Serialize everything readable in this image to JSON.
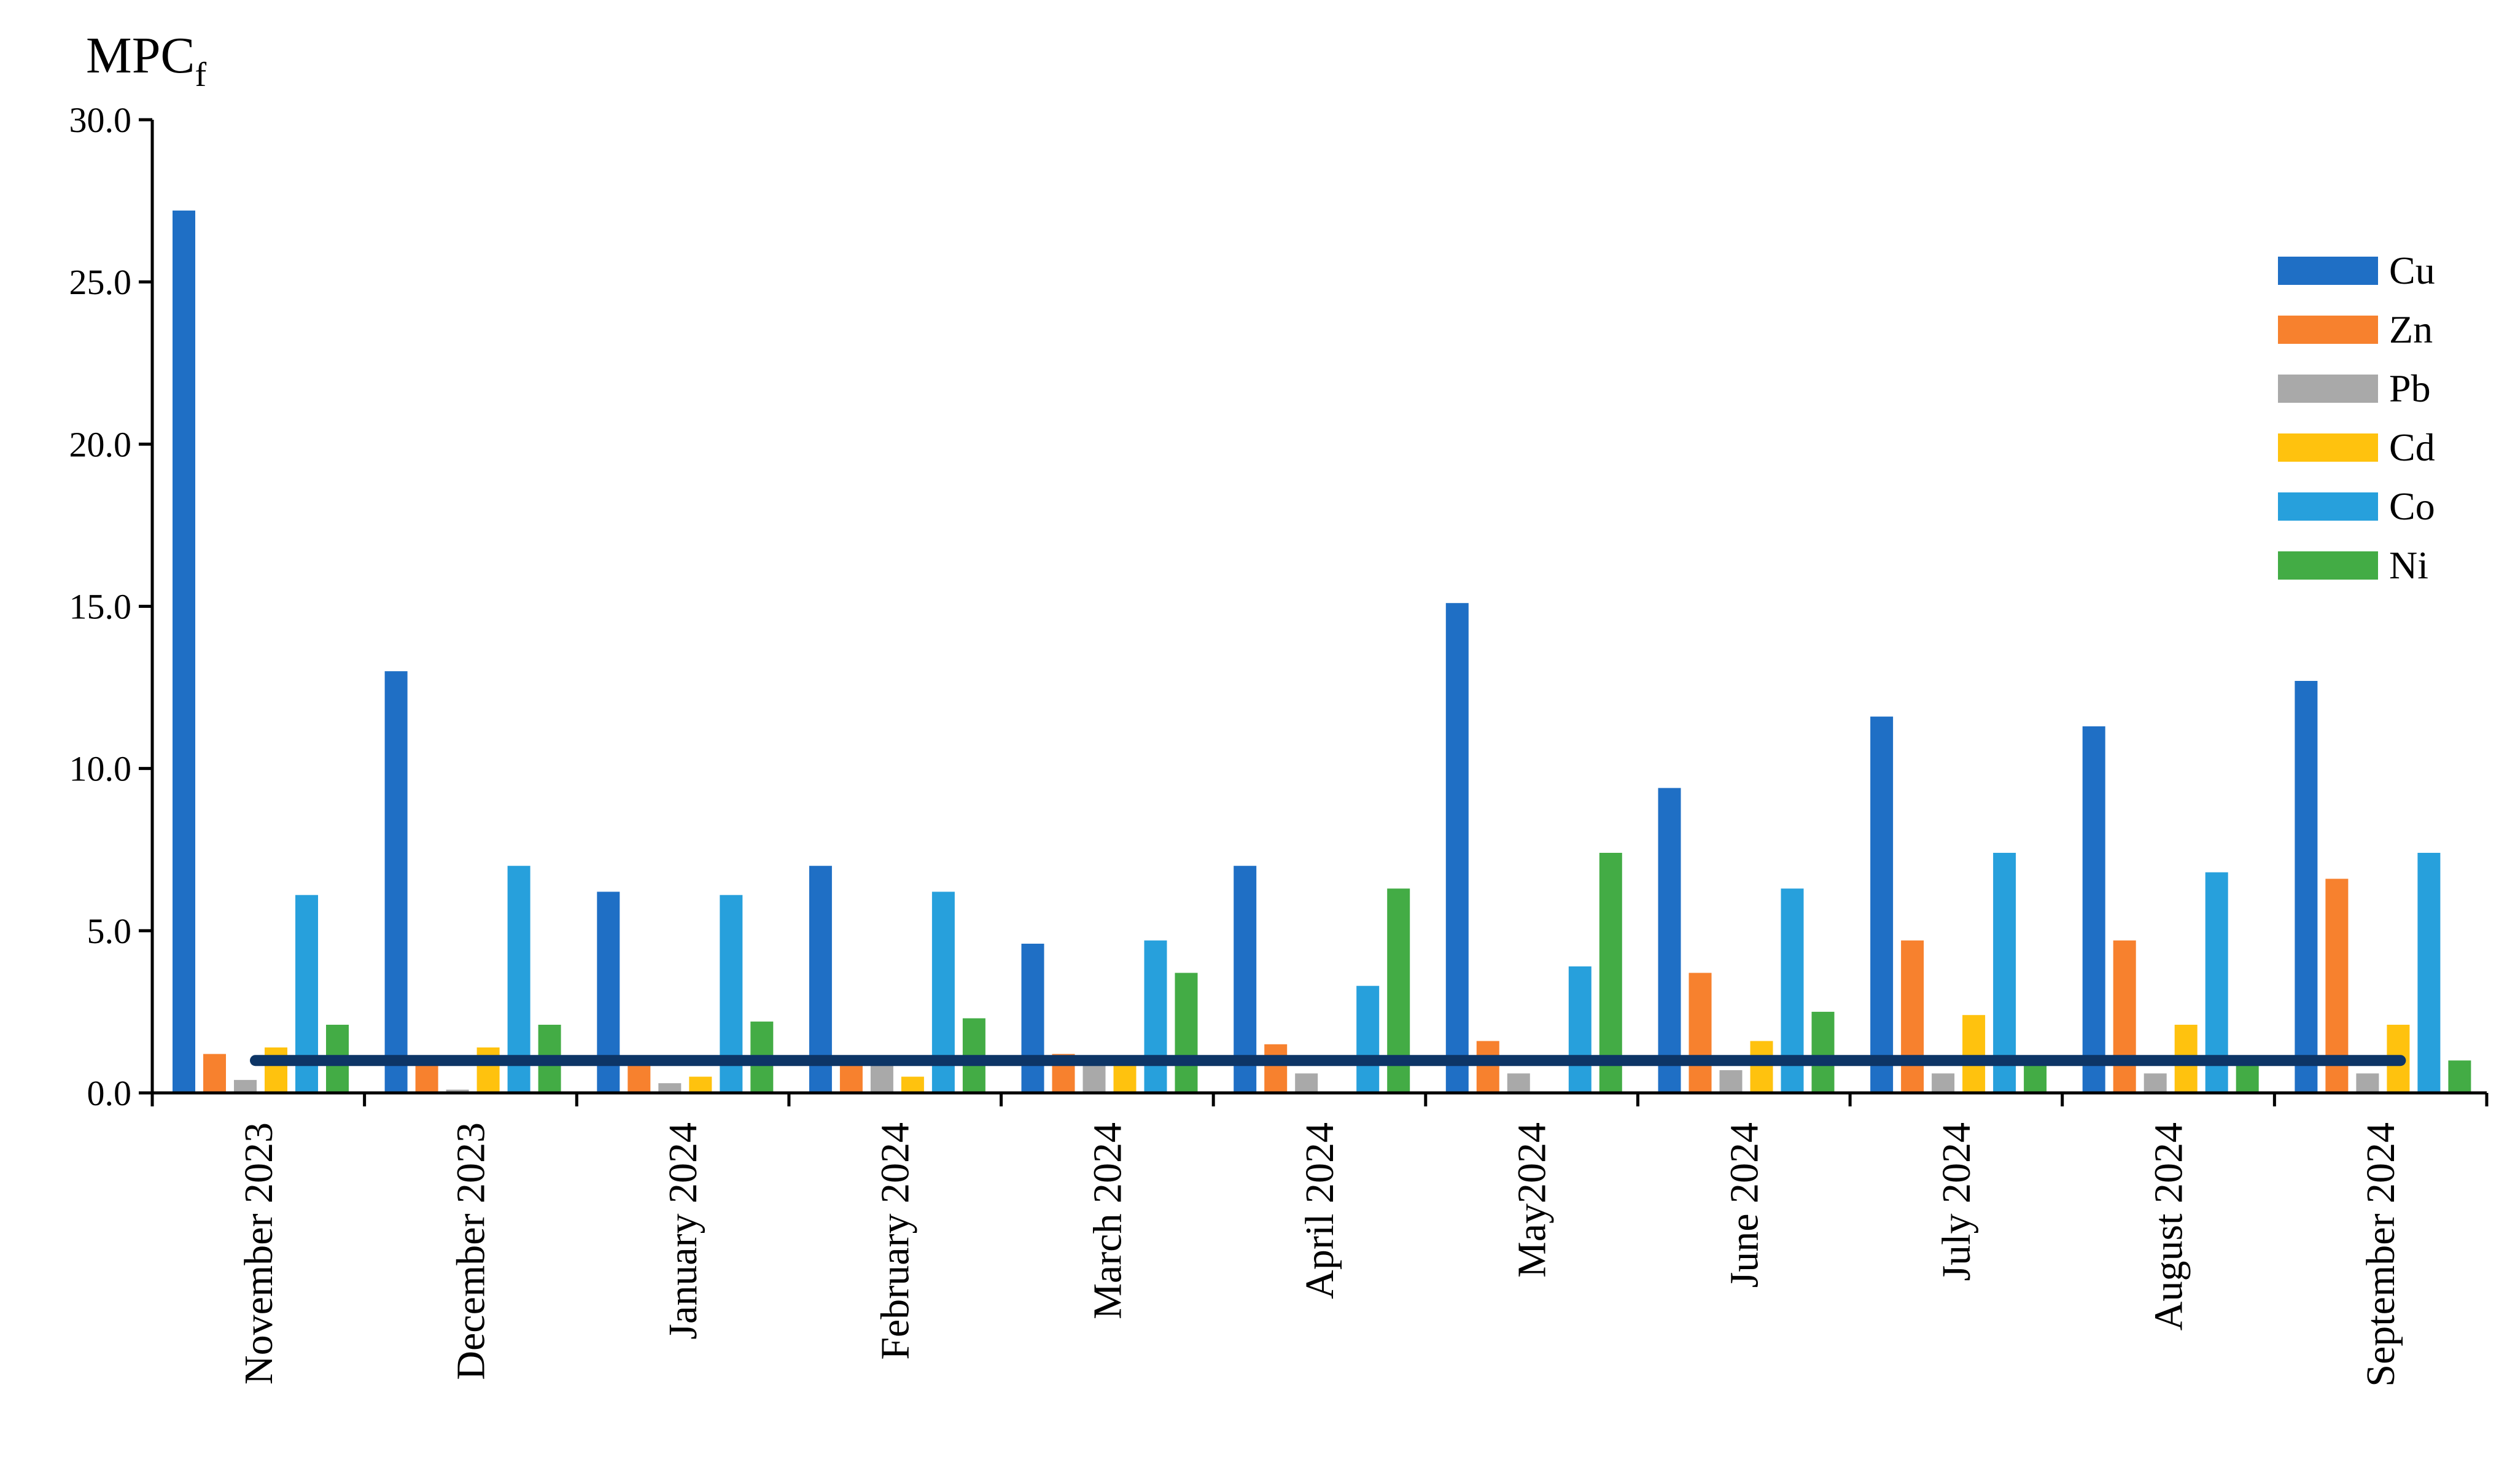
{
  "chart_data": {
    "type": "bar",
    "ylabel": "MPC",
    "ylabel_subscript": "f",
    "title": "",
    "xlabel": "",
    "ylim": [
      0,
      30
    ],
    "yticks": [
      0,
      5,
      10,
      15,
      20,
      25,
      30
    ],
    "ytick_labels": [
      "0.0",
      "5.0",
      "10.0",
      "15.0",
      "20.0",
      "25.0",
      "30.0"
    ],
    "categories": [
      "November 2023",
      "December 2023",
      "January 2024",
      "February 2024",
      "March 2024",
      "April 2024",
      "May2024",
      "June 2024",
      "July 2024",
      "August 2024",
      "September 2024"
    ],
    "series": [
      {
        "name": "Cu",
        "color": "#1f6fc5",
        "values": [
          27.2,
          13.0,
          6.2,
          7.0,
          4.6,
          7.0,
          15.1,
          9.4,
          11.6,
          11.3,
          12.7
        ]
      },
      {
        "name": "Zn",
        "color": "#f7812e",
        "values": [
          1.2,
          1.0,
          0.9,
          0.9,
          1.2,
          1.5,
          1.6,
          3.7,
          4.7,
          4.7,
          6.6
        ]
      },
      {
        "name": "Pb",
        "color": "#a9a9a9",
        "values": [
          0.4,
          0.1,
          0.3,
          1.0,
          1.0,
          0.6,
          0.6,
          0.7,
          0.6,
          0.6,
          0.6
        ]
      },
      {
        "name": "Cd",
        "color": "#ffc20e",
        "values": [
          1.4,
          1.4,
          0.5,
          0.5,
          1.0,
          0.0,
          0.0,
          1.6,
          2.4,
          2.1,
          2.1
        ]
      },
      {
        "name": "Co",
        "color": "#27a0dc",
        "values": [
          6.1,
          7.0,
          6.1,
          6.2,
          4.7,
          3.3,
          3.9,
          6.3,
          7.4,
          6.8,
          7.4
        ]
      },
      {
        "name": "Ni",
        "color": "#43ac45",
        "values": [
          2.1,
          2.1,
          2.2,
          2.3,
          3.7,
          6.3,
          7.4,
          2.5,
          0.9,
          0.9,
          1.0
        ]
      }
    ],
    "reference_line": {
      "value": 1.0,
      "color": "#0d3566"
    },
    "legend_position": "top-right",
    "grid": false
  }
}
